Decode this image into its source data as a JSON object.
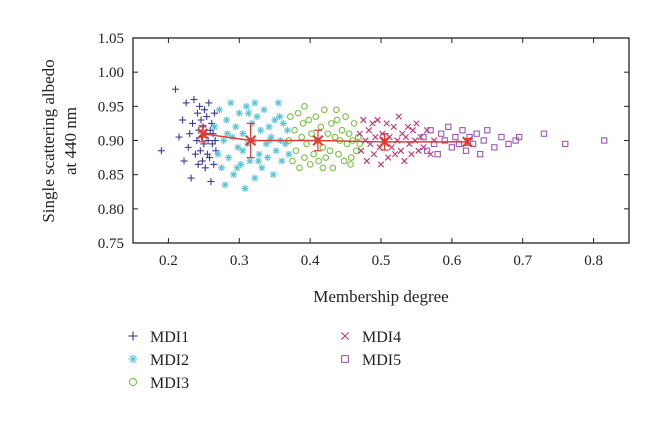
{
  "chart_data": {
    "type": "scatter",
    "xlabel": "Membership degree",
    "ylabel_lines": [
      "Single scattering albedo",
      "at 440 nm"
    ],
    "xlim": [
      0.15,
      0.85
    ],
    "ylim": [
      0.75,
      1.05
    ],
    "x_ticks": [
      0.2,
      0.3,
      0.4,
      0.5,
      0.6,
      0.7,
      0.8
    ],
    "x_tick_labels": [
      "0.2",
      "0.3",
      "0.4",
      "0.5",
      "0.6",
      "0.7",
      "0.8"
    ],
    "y_ticks": [
      0.75,
      0.8,
      0.85,
      0.9,
      0.95,
      1.0,
      1.05
    ],
    "y_tick_labels": [
      "0.75",
      "0.80",
      "0.85",
      "0.90",
      "0.95",
      "1.00",
      "1.05"
    ],
    "grid": false,
    "legend_position": "below-plot",
    "series": [
      {
        "name": "MDI1",
        "marker": "plus",
        "color": "#3b3b9e",
        "points": [
          [
            0.19,
            0.885
          ],
          [
            0.21,
            0.975
          ],
          [
            0.215,
            0.905
          ],
          [
            0.22,
            0.93
          ],
          [
            0.222,
            0.87
          ],
          [
            0.225,
            0.955
          ],
          [
            0.228,
            0.89
          ],
          [
            0.23,
            0.91
          ],
          [
            0.232,
            0.845
          ],
          [
            0.234,
            0.925
          ],
          [
            0.236,
            0.96
          ],
          [
            0.238,
            0.88
          ],
          [
            0.24,
            0.9
          ],
          [
            0.241,
            0.94
          ],
          [
            0.242,
            0.865
          ],
          [
            0.243,
            0.915
          ],
          [
            0.244,
            0.95
          ],
          [
            0.245,
            0.885
          ],
          [
            0.246,
            0.93
          ],
          [
            0.247,
            0.905
          ],
          [
            0.248,
            0.87
          ],
          [
            0.249,
            0.92
          ],
          [
            0.25,
            0.895
          ],
          [
            0.251,
            0.945
          ],
          [
            0.252,
            0.86
          ],
          [
            0.253,
            0.91
          ],
          [
            0.254,
            0.935
          ],
          [
            0.255,
            0.88
          ],
          [
            0.256,
            0.9
          ],
          [
            0.257,
            0.955
          ],
          [
            0.258,
            0.875
          ],
          [
            0.259,
            0.915
          ],
          [
            0.26,
            0.84
          ],
          [
            0.261,
            0.925
          ],
          [
            0.262,
            0.895
          ],
          [
            0.263,
            0.91
          ],
          [
            0.264,
            0.865
          ],
          [
            0.265,
            0.94
          ],
          [
            0.266,
            0.9
          ],
          [
            0.267,
            0.885
          ]
        ]
      },
      {
        "name": "MDI2",
        "marker": "star",
        "color": "#5bc2d6",
        "points": [
          [
            0.265,
            0.92
          ],
          [
            0.27,
            0.88
          ],
          [
            0.272,
            0.945
          ],
          [
            0.275,
            0.86
          ],
          [
            0.278,
            0.9
          ],
          [
            0.28,
            0.835
          ],
          [
            0.282,
            0.93
          ],
          [
            0.285,
            0.875
          ],
          [
            0.288,
            0.955
          ],
          [
            0.29,
            0.905
          ],
          [
            0.292,
            0.85
          ],
          [
            0.295,
            0.92
          ],
          [
            0.298,
            0.89
          ],
          [
            0.3,
            0.94
          ],
          [
            0.302,
            0.865
          ],
          [
            0.305,
            0.91
          ],
          [
            0.308,
            0.83
          ],
          [
            0.31,
            0.95
          ],
          [
            0.312,
            0.895
          ],
          [
            0.315,
            0.87
          ],
          [
            0.318,
            0.925
          ],
          [
            0.32,
            0.9
          ],
          [
            0.322,
            0.845
          ],
          [
            0.325,
            0.935
          ],
          [
            0.328,
            0.88
          ],
          [
            0.33,
            0.915
          ],
          [
            0.332,
            0.86
          ],
          [
            0.335,
            0.945
          ],
          [
            0.338,
            0.895
          ],
          [
            0.34,
            0.875
          ],
          [
            0.342,
            0.92
          ],
          [
            0.345,
            0.905
          ],
          [
            0.348,
            0.85
          ],
          [
            0.35,
            0.93
          ],
          [
            0.352,
            0.885
          ],
          [
            0.355,
            0.955
          ],
          [
            0.358,
            0.9
          ],
          [
            0.36,
            0.87
          ],
          [
            0.362,
            0.925
          ],
          [
            0.365,
            0.895
          ],
          [
            0.368,
            0.915
          ],
          [
            0.37,
            0.88
          ],
          [
            0.283,
            0.91
          ],
          [
            0.297,
            0.86
          ],
          [
            0.313,
            0.94
          ],
          [
            0.327,
            0.87
          ],
          [
            0.343,
            0.9
          ],
          [
            0.357,
            0.935
          ],
          [
            0.305,
            0.885
          ],
          [
            0.322,
            0.955
          ]
        ]
      },
      {
        "name": "MDI3",
        "marker": "circle",
        "color": "#7ac143",
        "points": [
          [
            0.37,
            0.9
          ],
          [
            0.372,
            0.935
          ],
          [
            0.375,
            0.87
          ],
          [
            0.378,
            0.915
          ],
          [
            0.38,
            0.885
          ],
          [
            0.383,
            0.94
          ],
          [
            0.385,
            0.86
          ],
          [
            0.388,
            0.905
          ],
          [
            0.39,
            0.925
          ],
          [
            0.392,
            0.875
          ],
          [
            0.395,
            0.895
          ],
          [
            0.398,
            0.93
          ],
          [
            0.4,
            0.865
          ],
          [
            0.402,
            0.91
          ],
          [
            0.405,
            0.88
          ],
          [
            0.408,
            0.935
          ],
          [
            0.41,
            0.9
          ],
          [
            0.412,
            0.87
          ],
          [
            0.415,
            0.92
          ],
          [
            0.418,
            0.89
          ],
          [
            0.42,
            0.945
          ],
          [
            0.422,
            0.875
          ],
          [
            0.425,
            0.91
          ],
          [
            0.428,
            0.885
          ],
          [
            0.43,
            0.925
          ],
          [
            0.432,
            0.86
          ],
          [
            0.435,
            0.905
          ],
          [
            0.438,
            0.93
          ],
          [
            0.44,
            0.88
          ],
          [
            0.442,
            0.9
          ],
          [
            0.445,
            0.915
          ],
          [
            0.448,
            0.87
          ],
          [
            0.45,
            0.935
          ],
          [
            0.452,
            0.895
          ],
          [
            0.455,
            0.91
          ],
          [
            0.458,
            0.875
          ],
          [
            0.46,
            0.9
          ],
          [
            0.462,
            0.925
          ],
          [
            0.465,
            0.885
          ],
          [
            0.468,
            0.905
          ],
          [
            0.47,
            0.895
          ],
          [
            0.392,
            0.95
          ],
          [
            0.418,
            0.86
          ],
          [
            0.437,
            0.945
          ],
          [
            0.457,
            0.865
          ]
        ]
      },
      {
        "name": "MDI4",
        "marker": "cross",
        "color": "#c2327a",
        "points": [
          [
            0.47,
            0.91
          ],
          [
            0.472,
            0.885
          ],
          [
            0.475,
            0.93
          ],
          [
            0.478,
            0.9
          ],
          [
            0.48,
            0.87
          ],
          [
            0.483,
            0.915
          ],
          [
            0.485,
            0.895
          ],
          [
            0.488,
            0.925
          ],
          [
            0.49,
            0.88
          ],
          [
            0.492,
            0.905
          ],
          [
            0.495,
            0.93
          ],
          [
            0.498,
            0.89
          ],
          [
            0.5,
            0.865
          ],
          [
            0.502,
            0.91
          ],
          [
            0.505,
            0.9
          ],
          [
            0.508,
            0.925
          ],
          [
            0.51,
            0.875
          ],
          [
            0.512,
            0.905
          ],
          [
            0.515,
            0.89
          ],
          [
            0.518,
            0.92
          ],
          [
            0.52,
            0.88
          ],
          [
            0.523,
            0.9
          ],
          [
            0.525,
            0.935
          ],
          [
            0.528,
            0.885
          ],
          [
            0.53,
            0.91
          ],
          [
            0.533,
            0.87
          ],
          [
            0.535,
            0.905
          ],
          [
            0.538,
            0.92
          ],
          [
            0.54,
            0.895
          ],
          [
            0.543,
            0.88
          ],
          [
            0.545,
            0.915
          ],
          [
            0.548,
            0.9
          ],
          [
            0.55,
            0.925
          ],
          [
            0.553,
            0.885
          ],
          [
            0.556,
            0.905
          ],
          [
            0.56,
            0.89
          ],
          [
            0.565,
            0.915
          ],
          [
            0.57,
            0.88
          ],
          [
            0.575,
            0.9
          ]
        ]
      },
      {
        "name": "MDI5",
        "marker": "square",
        "color": "#9a5ab8",
        "points": [
          [
            0.56,
            0.905
          ],
          [
            0.565,
            0.885
          ],
          [
            0.57,
            0.915
          ],
          [
            0.575,
            0.895
          ],
          [
            0.58,
            0.88
          ],
          [
            0.585,
            0.91
          ],
          [
            0.59,
            0.9
          ],
          [
            0.595,
            0.92
          ],
          [
            0.6,
            0.89
          ],
          [
            0.605,
            0.905
          ],
          [
            0.61,
            0.895
          ],
          [
            0.615,
            0.915
          ],
          [
            0.62,
            0.885
          ],
          [
            0.625,
            0.905
          ],
          [
            0.63,
            0.895
          ],
          [
            0.635,
            0.91
          ],
          [
            0.64,
            0.88
          ],
          [
            0.645,
            0.9
          ],
          [
            0.65,
            0.915
          ],
          [
            0.66,
            0.89
          ],
          [
            0.67,
            0.905
          ],
          [
            0.68,
            0.895
          ],
          [
            0.69,
            0.9
          ],
          [
            0.695,
            0.905
          ],
          [
            0.73,
            0.91
          ],
          [
            0.76,
            0.895
          ],
          [
            0.815,
            0.9
          ]
        ]
      }
    ],
    "mean_line": {
      "color": "#e03a2e",
      "points": [
        {
          "x": 0.248,
          "y": 0.91,
          "yerr": 0.012
        },
        {
          "x": 0.316,
          "y": 0.9,
          "yerr": 0.025
        },
        {
          "x": 0.411,
          "y": 0.9,
          "yerr": 0.015
        },
        {
          "x": 0.505,
          "y": 0.898,
          "yerr": 0.012
        },
        {
          "x": 0.622,
          "y": 0.898,
          "yerr": 0.005
        }
      ]
    }
  }
}
